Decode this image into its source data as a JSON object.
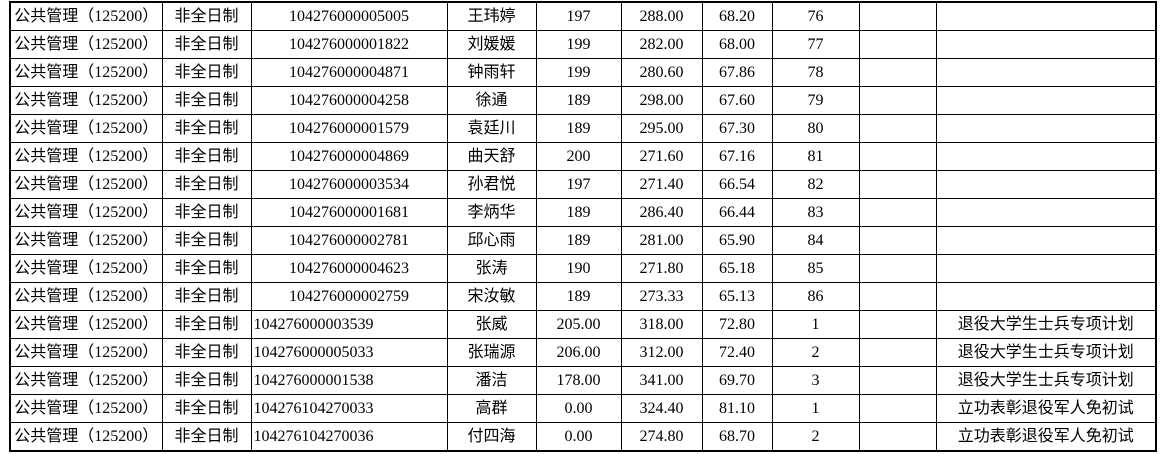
{
  "colors": {
    "background": "#ffffff",
    "grid_border": "#000000",
    "text": "#000000"
  },
  "table": {
    "description": "admission-results-grid",
    "cell_keys": [
      "program",
      "study_type",
      "exam_id",
      "name",
      "initial_score",
      "retest_score",
      "total_score",
      "rank",
      "extra",
      "remark"
    ],
    "rows": [
      {
        "program": "公共管理（125200）",
        "study_type": "非全日制",
        "exam_id": "104276000005005",
        "name": "王玮婷",
        "initial_score": "197",
        "retest_score": "288.00",
        "total_score": "68.20",
        "rank": "76",
        "extra": "",
        "remark": ""
      },
      {
        "program": "公共管理（125200）",
        "study_type": "非全日制",
        "exam_id": "104276000001822",
        "name": "刘媛媛",
        "initial_score": "199",
        "retest_score": "282.00",
        "total_score": "68.00",
        "rank": "77",
        "extra": "",
        "remark": ""
      },
      {
        "program": "公共管理（125200）",
        "study_type": "非全日制",
        "exam_id": "104276000004871",
        "name": "钟雨轩",
        "initial_score": "199",
        "retest_score": "280.60",
        "total_score": "67.86",
        "rank": "78",
        "extra": "",
        "remark": ""
      },
      {
        "program": "公共管理（125200）",
        "study_type": "非全日制",
        "exam_id": "104276000004258",
        "name": "徐通",
        "initial_score": "189",
        "retest_score": "298.00",
        "total_score": "67.60",
        "rank": "79",
        "extra": "",
        "remark": ""
      },
      {
        "program": "公共管理（125200）",
        "study_type": "非全日制",
        "exam_id": "104276000001579",
        "name": "袁廷川",
        "initial_score": "189",
        "retest_score": "295.00",
        "total_score": "67.30",
        "rank": "80",
        "extra": "",
        "remark": ""
      },
      {
        "program": "公共管理（125200）",
        "study_type": "非全日制",
        "exam_id": "104276000004869",
        "name": "曲天舒",
        "initial_score": "200",
        "retest_score": "271.60",
        "total_score": "67.16",
        "rank": "81",
        "extra": "",
        "remark": ""
      },
      {
        "program": "公共管理（125200）",
        "study_type": "非全日制",
        "exam_id": "104276000003534",
        "name": "孙君悦",
        "initial_score": "197",
        "retest_score": "271.40",
        "total_score": "66.54",
        "rank": "82",
        "extra": "",
        "remark": ""
      },
      {
        "program": "公共管理（125200）",
        "study_type": "非全日制",
        "exam_id": "104276000001681",
        "name": "李炳华",
        "initial_score": "189",
        "retest_score": "286.40",
        "total_score": "66.44",
        "rank": "83",
        "extra": "",
        "remark": ""
      },
      {
        "program": "公共管理（125200）",
        "study_type": "非全日制",
        "exam_id": "104276000002781",
        "name": "邱心雨",
        "initial_score": "189",
        "retest_score": "281.00",
        "total_score": "65.90",
        "rank": "84",
        "extra": "",
        "remark": ""
      },
      {
        "program": "公共管理（125200）",
        "study_type": "非全日制",
        "exam_id": "104276000004623",
        "name": "张涛",
        "initial_score": "190",
        "retest_score": "271.80",
        "total_score": "65.18",
        "rank": "85",
        "extra": "",
        "remark": ""
      },
      {
        "program": "公共管理（125200）",
        "study_type": "非全日制",
        "exam_id": "104276000002759",
        "name": "宋汝敏",
        "initial_score": "189",
        "retest_score": "273.33",
        "total_score": "65.13",
        "rank": "86",
        "extra": "",
        "remark": ""
      },
      {
        "program": "公共管理（125200）",
        "study_type": "非全日制",
        "exam_id": "104276000003539",
        "name": "张威",
        "initial_score": "205.00",
        "retest_score": "318.00",
        "total_score": "72.80",
        "rank": "1",
        "extra": "",
        "remark": "退役大学生士兵专项计划",
        "id_left": true
      },
      {
        "program": "公共管理（125200）",
        "study_type": "非全日制",
        "exam_id": "104276000005033",
        "name": "张瑞源",
        "initial_score": "206.00",
        "retest_score": "312.00",
        "total_score": "72.40",
        "rank": "2",
        "extra": "",
        "remark": "退役大学生士兵专项计划",
        "id_left": true
      },
      {
        "program": "公共管理（125200）",
        "study_type": "非全日制",
        "exam_id": "104276000001538",
        "name": "潘洁",
        "initial_score": "178.00",
        "retest_score": "341.00",
        "total_score": "69.70",
        "rank": "3",
        "extra": "",
        "remark": "退役大学生士兵专项计划",
        "id_left": true
      },
      {
        "program": "公共管理（125200）",
        "study_type": "非全日制",
        "exam_id": "104276104270033",
        "name": "高群",
        "initial_score": "0.00",
        "retest_score": "324.40",
        "total_score": "81.10",
        "rank": "1",
        "extra": "",
        "remark": "立功表彰退役军人免初试",
        "id_left": true
      },
      {
        "program": "公共管理（125200）",
        "study_type": "非全日制",
        "exam_id": "104276104270036",
        "name": "付四海",
        "initial_score": "0.00",
        "retest_score": "274.80",
        "total_score": "68.70",
        "rank": "2",
        "extra": "",
        "remark": "立功表彰退役军人免初试",
        "id_left": true
      }
    ]
  }
}
